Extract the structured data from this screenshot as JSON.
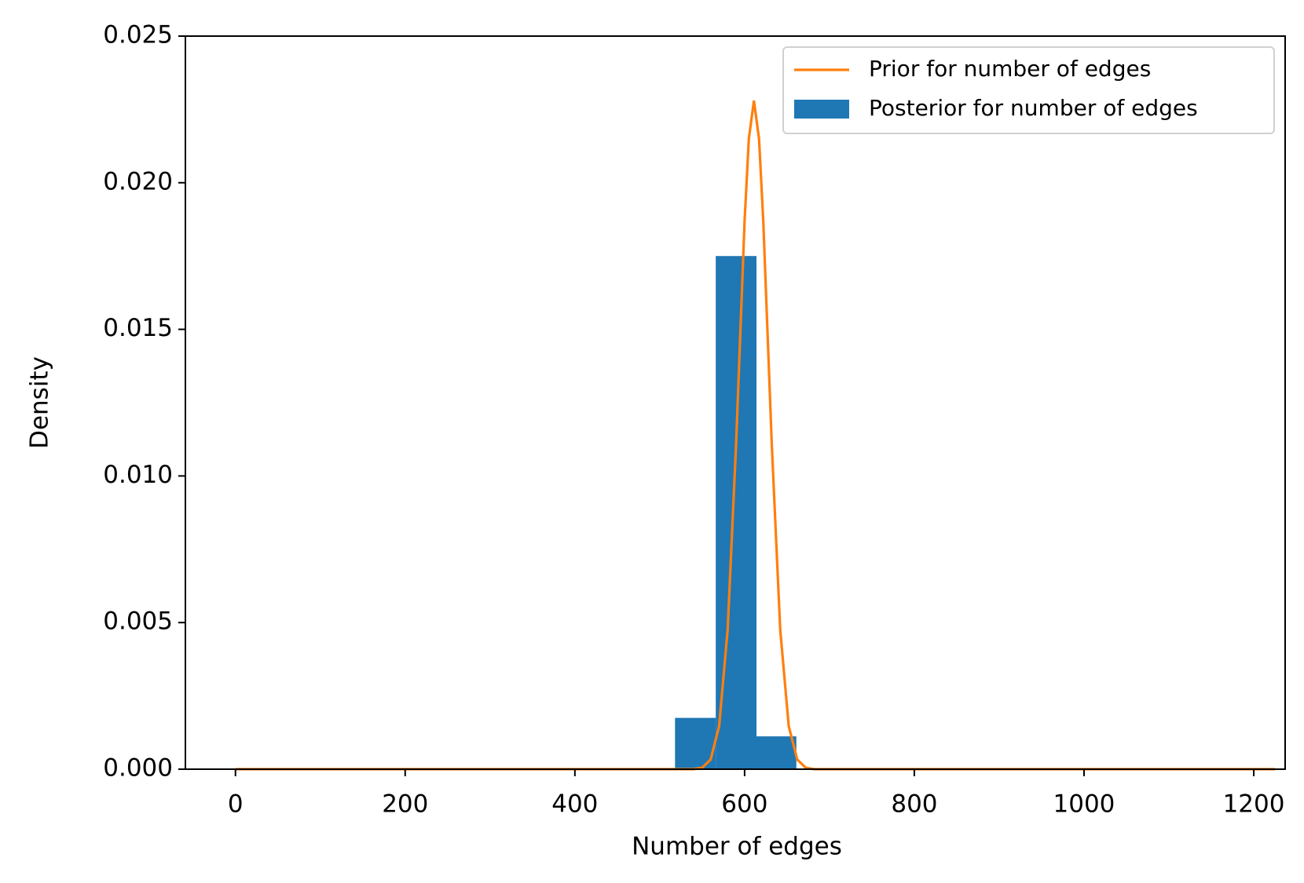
{
  "chart_data": {
    "type": "histogram",
    "xlabel": "Number of edges",
    "ylabel": "Density",
    "xlim": [
      -59,
      1237
    ],
    "ylim": [
      0,
      0.025
    ],
    "xticks": [
      0,
      200,
      400,
      600,
      800,
      1000,
      1200
    ],
    "yticks": [
      {
        "value": 0,
        "label": "0.000"
      },
      0.005,
      {
        "value": 0.01,
        "label": "0.010"
      },
      0.015,
      {
        "value": 0.02,
        "label": "0.020"
      },
      0.025
    ],
    "legend": "upper right",
    "series": [
      {
        "name": "Prior for number of edges",
        "type": "line",
        "color": "#ff7f0e",
        "x": [
          0,
          500,
          540,
          550,
          560,
          570,
          580,
          590,
          600,
          605,
          611,
          617,
          622,
          632,
          642,
          652,
          662,
          672,
          682,
          720,
          1225
        ],
        "values": [
          0,
          0,
          0,
          5e-05,
          0.00033,
          0.00147,
          0.00475,
          0.0111,
          0.0187,
          0.0215,
          0.0228,
          0.0215,
          0.0187,
          0.0111,
          0.00475,
          0.00147,
          0.00033,
          5e-05,
          0,
          0,
          0
        ]
      },
      {
        "name": "Posterior for number of edges",
        "type": "histogram",
        "color": "#1f77b4",
        "bins": [
          518,
          566,
          614,
          661
        ],
        "values": [
          0.00175,
          0.0175,
          0.00112
        ]
      }
    ]
  }
}
